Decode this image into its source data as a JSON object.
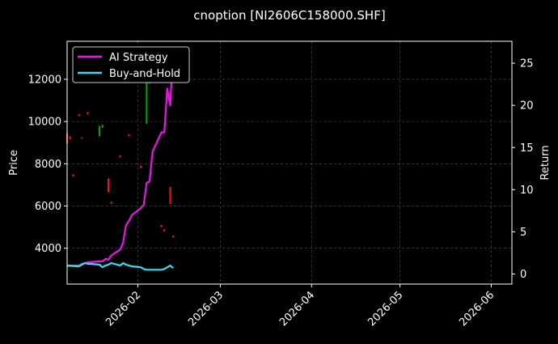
{
  "chart_data": {
    "type": "line",
    "title": "cnoption [NI2606C158000.SHF]",
    "ylabel_left": "Price",
    "ylabel_right": "Return",
    "x_ticks": [
      "2026-02",
      "2026-03",
      "2026-04",
      "2026-05",
      "2026-06"
    ],
    "x_tick_dates": [
      "2026-02-01",
      "2026-03-01",
      "2026-04-01",
      "2026-05-01",
      "2026-06-01"
    ],
    "xlim": [
      "2026-01-08",
      "2026-06-08"
    ],
    "left_ticks": [
      4000,
      6000,
      8000,
      10000,
      12000
    ],
    "ylim_left": [
      2300,
      13800
    ],
    "right_ticks": [
      0,
      5,
      10,
      15,
      20,
      25
    ],
    "ylim_right": [
      -1.2,
      27.6
    ],
    "grid": true,
    "legend_position": "top-left",
    "colors": {
      "background": "#000000",
      "ai_strategy": "#ee11ee",
      "buy_and_hold": "#33e0ee",
      "up_candle": "#00aa00",
      "down_candle": "#ff1111",
      "grid": "#555555"
    },
    "series": [
      {
        "name": "AI Strategy",
        "axis": "right",
        "x": [
          "2026-01-08",
          "2026-01-12",
          "2026-01-13",
          "2026-01-14",
          "2026-01-15",
          "2026-01-16",
          "2026-01-19",
          "2026-01-20",
          "2026-01-21",
          "2026-01-22",
          "2026-01-23",
          "2026-01-26",
          "2026-01-27",
          "2026-01-28",
          "2026-01-29",
          "2026-01-30",
          "2026-02-02",
          "2026-02-03",
          "2026-02-04",
          "2026-02-05",
          "2026-02-06",
          "2026-02-09",
          "2026-02-10",
          "2026-02-11",
          "2026-02-12",
          "2026-02-13"
        ],
        "values": [
          1.0,
          1.0,
          1.2,
          1.3,
          1.4,
          1.4,
          1.5,
          1.5,
          1.8,
          1.7,
          2.2,
          2.9,
          3.7,
          5.8,
          6.3,
          7.0,
          7.8,
          8.2,
          10.8,
          11.0,
          14.5,
          16.8,
          16.8,
          22.0,
          20.0,
          26.8
        ]
      },
      {
        "name": "Buy-and-Hold",
        "axis": "right",
        "x": [
          "2026-01-08",
          "2026-01-12",
          "2026-01-13",
          "2026-01-14",
          "2026-01-15",
          "2026-01-16",
          "2026-01-19",
          "2026-01-20",
          "2026-01-21",
          "2026-01-22",
          "2026-01-23",
          "2026-01-26",
          "2026-01-27",
          "2026-01-28",
          "2026-01-29",
          "2026-01-30",
          "2026-02-02",
          "2026-02-03",
          "2026-02-04",
          "2026-02-05",
          "2026-02-06",
          "2026-02-09",
          "2026-02-10",
          "2026-02-11",
          "2026-02-12",
          "2026-02-13"
        ],
        "values": [
          1.0,
          0.9,
          1.1,
          1.3,
          1.2,
          1.2,
          1.1,
          0.8,
          1.0,
          1.1,
          1.3,
          1.0,
          1.3,
          1.1,
          1.0,
          0.9,
          0.8,
          0.6,
          0.5,
          0.5,
          0.5,
          0.5,
          0.6,
          0.8,
          1.0,
          0.7
        ]
      }
    ],
    "candles": [
      {
        "date": "2026-01-08",
        "low": 8950,
        "high": 9450,
        "color": "down"
      },
      {
        "date": "2026-01-09",
        "low": 9150,
        "high": 9300,
        "color": "down"
      },
      {
        "date": "2026-01-10",
        "low": 7400,
        "high": 7500,
        "color": "down"
      },
      {
        "date": "2026-01-12",
        "low": 10250,
        "high": 10350,
        "color": "down"
      },
      {
        "date": "2026-01-13",
        "low": 9200,
        "high": 9250,
        "color": "down"
      },
      {
        "date": "2026-01-15",
        "low": 10350,
        "high": 10450,
        "color": "down"
      },
      {
        "date": "2026-01-19",
        "low": 9300,
        "high": 9800,
        "color": "up"
      },
      {
        "date": "2026-01-20",
        "low": 9700,
        "high": 9850,
        "color": "up"
      },
      {
        "date": "2026-01-22",
        "low": 6650,
        "high": 7300,
        "color": "down"
      },
      {
        "date": "2026-01-23",
        "low": 6100,
        "high": 6200,
        "color": "down"
      },
      {
        "date": "2026-01-26",
        "low": 8300,
        "high": 8400,
        "color": "down"
      },
      {
        "date": "2026-01-29",
        "low": 9300,
        "high": 9400,
        "color": "down"
      },
      {
        "date": "2026-02-02",
        "low": 7800,
        "high": 7900,
        "color": "down"
      },
      {
        "date": "2026-02-04",
        "low": 9900,
        "high": 12100,
        "color": "up"
      },
      {
        "date": "2026-02-05",
        "low": 11800,
        "high": 12000,
        "color": "up"
      },
      {
        "date": "2026-02-09",
        "low": 5000,
        "high": 5100,
        "color": "down"
      },
      {
        "date": "2026-02-10",
        "low": 4800,
        "high": 4900,
        "color": "down"
      },
      {
        "date": "2026-02-12",
        "low": 6100,
        "high": 6900,
        "color": "down"
      },
      {
        "date": "2026-02-13",
        "low": 4500,
        "high": 4600,
        "color": "down"
      }
    ]
  }
}
